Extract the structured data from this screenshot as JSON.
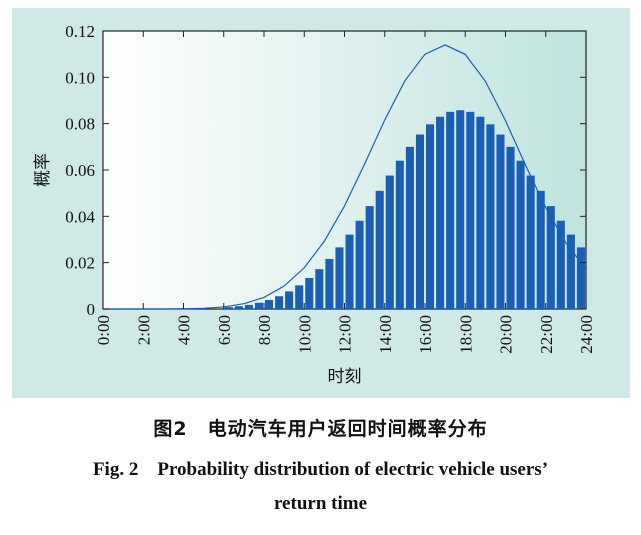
{
  "figure": {
    "caption_cn": "图2　电动汽车用户返回时间概率分布",
    "caption_en_line1": "Fig. 2　Probability distribution of electric vehicle users’",
    "caption_en_line2": "return time"
  },
  "chart_data": {
    "type": "bar",
    "xlabel": "时刻",
    "ylabel": "概率",
    "ylim": [
      0,
      0.12
    ],
    "yticks": [
      "0",
      "0.02",
      "0.04",
      "0.06",
      "0.08",
      "0.10",
      "0.12"
    ],
    "ytick_values": [
      0,
      0.02,
      0.04,
      0.06,
      0.08,
      0.1,
      0.12
    ],
    "xlim": [
      0,
      24
    ],
    "xticks": [
      "0:00",
      "2:00",
      "4:00",
      "6:00",
      "8:00",
      "10:00",
      "12:00",
      "14:00",
      "16:00",
      "18:00",
      "20:00",
      "22:00",
      "24:00"
    ],
    "xtick_values": [
      0,
      2,
      4,
      6,
      8,
      10,
      12,
      14,
      16,
      18,
      20,
      22,
      24
    ],
    "bar_width_hours": 0.5,
    "bars": {
      "x_start": [
        6.0,
        6.5,
        7.0,
        7.5,
        8.0,
        8.5,
        9.0,
        9.5,
        10.0,
        10.5,
        11.0,
        11.5,
        12.0,
        12.5,
        13.0,
        13.5,
        14.0,
        14.5,
        15.0,
        15.5,
        16.0,
        16.5,
        17.0,
        17.5,
        18.0,
        18.5,
        19.0,
        19.5,
        20.0,
        20.5,
        21.0,
        21.5,
        22.0,
        22.5,
        23.0,
        23.5
      ],
      "values": [
        0.0008,
        0.0012,
        0.0018,
        0.0027,
        0.0039,
        0.0055,
        0.0076,
        0.0102,
        0.0134,
        0.0172,
        0.0216,
        0.0266,
        0.0321,
        0.0381,
        0.0444,
        0.051,
        0.0576,
        0.064,
        0.07,
        0.0753,
        0.0797,
        0.083,
        0.0851,
        0.0858,
        0.0851,
        0.083,
        0.0797,
        0.0753,
        0.07,
        0.064,
        0.0576,
        0.051,
        0.0444,
        0.0381,
        0.0321,
        0.0266
      ]
    },
    "curve": {
      "x": [
        0,
        1,
        2,
        3,
        4,
        5,
        6,
        7,
        8,
        9,
        10,
        11,
        12,
        13,
        14,
        15,
        16,
        17,
        18,
        19,
        20,
        21,
        22,
        23,
        24
      ],
      "y": [
        0,
        0,
        0,
        0,
        0.0001,
        0.0003,
        0.0009,
        0.0023,
        0.005,
        0.0099,
        0.0178,
        0.0293,
        0.0445,
        0.0626,
        0.0816,
        0.0985,
        0.11,
        0.114,
        0.1099,
        0.0983,
        0.0813,
        0.062,
        0.0437,
        0.0285,
        0.0172
      ]
    },
    "colors": {
      "bar": "#1a5fb4",
      "curve": "#1a5fb4",
      "background_left": "#ffffff",
      "background_right": "#bfe3de",
      "panel": "#cfe9e6"
    },
    "grid": false,
    "legend": false
  }
}
